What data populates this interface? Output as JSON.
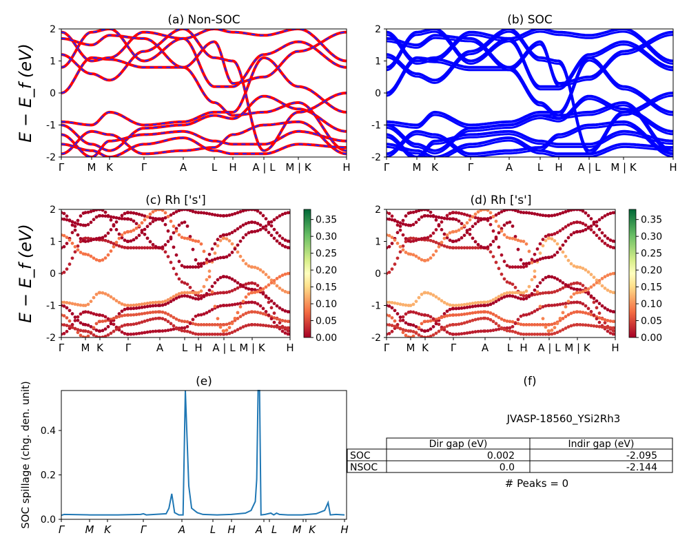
{
  "chart_data": [
    {
      "panel": "a",
      "type": "line",
      "title": "(a) Non-SOC",
      "ylabel": "E − E_f (eV)",
      "ylim": [
        -2,
        2
      ],
      "yticks": [
        "-2",
        "-1",
        "0",
        "1",
        "2"
      ],
      "kpoint_labels": [
        "Γ",
        "M",
        "K",
        "Γ",
        "A",
        "L",
        "H",
        "A | L",
        "M | K",
        "H"
      ],
      "colors": {
        "line": "#ff0000",
        "dash": "#2222ff"
      },
      "note_bands": "band energies (eV) sampled at the labelled k-points, approximate",
      "bands": [
        [
          0,
          1.1,
          1.05,
          0.8,
          0.8,
          -0.3,
          -0.7,
          -0.6,
          -0.3,
          -1.8
        ],
        [
          1.9,
          1.0,
          1.1,
          1.9,
          1.7,
          0.2,
          0.2,
          1.2,
          1.6,
          0.8
        ],
        [
          -0.9,
          -1.0,
          -0.6,
          -1.0,
          -0.9,
          -0.6,
          -0.6,
          1.1,
          0.2,
          -0.6
        ],
        [
          -1.0,
          -1.6,
          -1.8,
          -1.1,
          -1.0,
          -0.7,
          -0.8,
          -0.1,
          -0.5,
          -1.2
        ],
        [
          -1.3,
          -2.0,
          -1.5,
          -1.3,
          -1.2,
          -1.5,
          -1.6,
          -1.6,
          -1.2,
          -1.5
        ],
        [
          1.7,
          1.5,
          1.8,
          1.7,
          0.8,
          1.6,
          0.3,
          0.5,
          1.3,
          1.9
        ],
        [
          -1.9,
          -1.2,
          -1.3,
          -1.9,
          -1.8,
          -1.7,
          -1.3,
          -1.0,
          -0.9,
          -1.9
        ],
        [
          0.8,
          1.9,
          2.0,
          1.0,
          1.7,
          2.0,
          1.9,
          1.8,
          2.0,
          1.0
        ],
        [
          -1.6,
          -1.8,
          -2.0,
          -1.6,
          -1.4,
          -1.8,
          -1.9,
          -1.9,
          -1.6,
          -1.7
        ],
        [
          1.2,
          0.6,
          0.4,
          1.3,
          2.0,
          1.1,
          1.0,
          -1.8,
          -0.6,
          0.0
        ]
      ]
    },
    {
      "panel": "b",
      "type": "line",
      "title": "(b) SOC",
      "ylim": [
        -2,
        2
      ],
      "yticks": [
        "-2",
        "-1",
        "0",
        "1",
        "2"
      ],
      "kpoint_labels": [
        "Γ",
        "M",
        "K",
        "Γ",
        "A",
        "L",
        "H",
        "A | L",
        "M | K",
        "H"
      ],
      "colors": {
        "line": "#0000ff"
      }
    },
    {
      "panel": "c",
      "type": "scatter",
      "title": "(c)  Rh ['s']",
      "ylabel": "E − E_f (eV)",
      "ylim": [
        -2,
        2
      ],
      "yticks": [
        "-2",
        "-1",
        "0",
        "1",
        "2"
      ],
      "kpoint_labels": [
        "Γ",
        "M",
        "K",
        "Γ",
        "A",
        "L",
        "H",
        "A | L",
        "M | K",
        "H"
      ],
      "band_weights": [
        0.02,
        0.0,
        0.1,
        0.0,
        0.06,
        0.0,
        0.01,
        0.0,
        0.03,
        0.08
      ],
      "colorbar": {
        "range": [
          0,
          0.38
        ],
        "ticks": [
          "0.00",
          "0.05",
          "0.10",
          "0.15",
          "0.20",
          "0.25",
          "0.30",
          "0.35"
        ],
        "colormap": "RdYlGn"
      }
    },
    {
      "panel": "d",
      "type": "scatter",
      "title": "(d) Rh ['s']",
      "ylim": [
        -2,
        2
      ],
      "yticks": [
        "-2",
        "-1",
        "0",
        "1",
        "2"
      ],
      "kpoint_labels": [
        "Γ",
        "M",
        "K",
        "Γ",
        "A",
        "L",
        "H",
        "A | L",
        "M | K",
        "H"
      ],
      "band_weights": [
        0.03,
        0.01,
        0.12,
        0.0,
        0.07,
        0.0,
        0.02,
        0.0,
        0.04,
        0.09
      ],
      "colorbar": {
        "range": [
          0,
          0.38
        ],
        "ticks": [
          "0.00",
          "0.05",
          "0.10",
          "0.15",
          "0.20",
          "0.25",
          "0.30",
          "0.35"
        ],
        "colormap": "RdYlGn"
      }
    },
    {
      "panel": "e",
      "type": "line",
      "title": "(e)",
      "ylabel": "SOC spillage (chg. den. unit)",
      "ylim": [
        0,
        0.58
      ],
      "yticks": [
        "0.0",
        "0.2",
        "0.4"
      ],
      "xtick_labels": [
        "Γ",
        "M",
        "K",
        "Γ",
        "A",
        "L",
        "H",
        "A",
        "L",
        "M",
        "K",
        "H"
      ],
      "color": "#1f77b4",
      "x": [
        0,
        0.01,
        0.1,
        0.2,
        0.28,
        0.29,
        0.3,
        0.37,
        0.38,
        0.39,
        0.4,
        0.415,
        0.425,
        0.43,
        0.438,
        0.45,
        0.46,
        0.48,
        0.5,
        0.55,
        0.6,
        0.65,
        0.67,
        0.685,
        0.69,
        0.695,
        0.7,
        0.705,
        0.72,
        0.74,
        0.75,
        0.76,
        0.77,
        0.8,
        0.85,
        0.9,
        0.93,
        0.942,
        0.95,
        0.97,
        1.0
      ],
      "y": [
        0.018,
        0.022,
        0.02,
        0.02,
        0.022,
        0.025,
        0.02,
        0.025,
        0.05,
        0.115,
        0.03,
        0.02,
        0.02,
        0.02,
        0.58,
        0.15,
        0.05,
        0.03,
        0.022,
        0.02,
        0.022,
        0.028,
        0.04,
        0.08,
        0.18,
        0.58,
        0.58,
        0.02,
        0.022,
        0.028,
        0.02,
        0.028,
        0.022,
        0.02,
        0.02,
        0.025,
        0.04,
        0.075,
        0.02,
        0.022,
        0.02
      ]
    },
    {
      "panel": "f",
      "type": "table",
      "title": "(f)",
      "material": "JVASP-18560_YSi2Rh3",
      "columns": [
        "",
        "Dir gap (eV)",
        "Indir gap (eV)"
      ],
      "rows": [
        [
          "SOC",
          "0.002",
          "-2.095"
        ],
        [
          "NSOC",
          "0.0",
          "-2.144"
        ]
      ],
      "footer": "# Peaks = 0"
    }
  ]
}
